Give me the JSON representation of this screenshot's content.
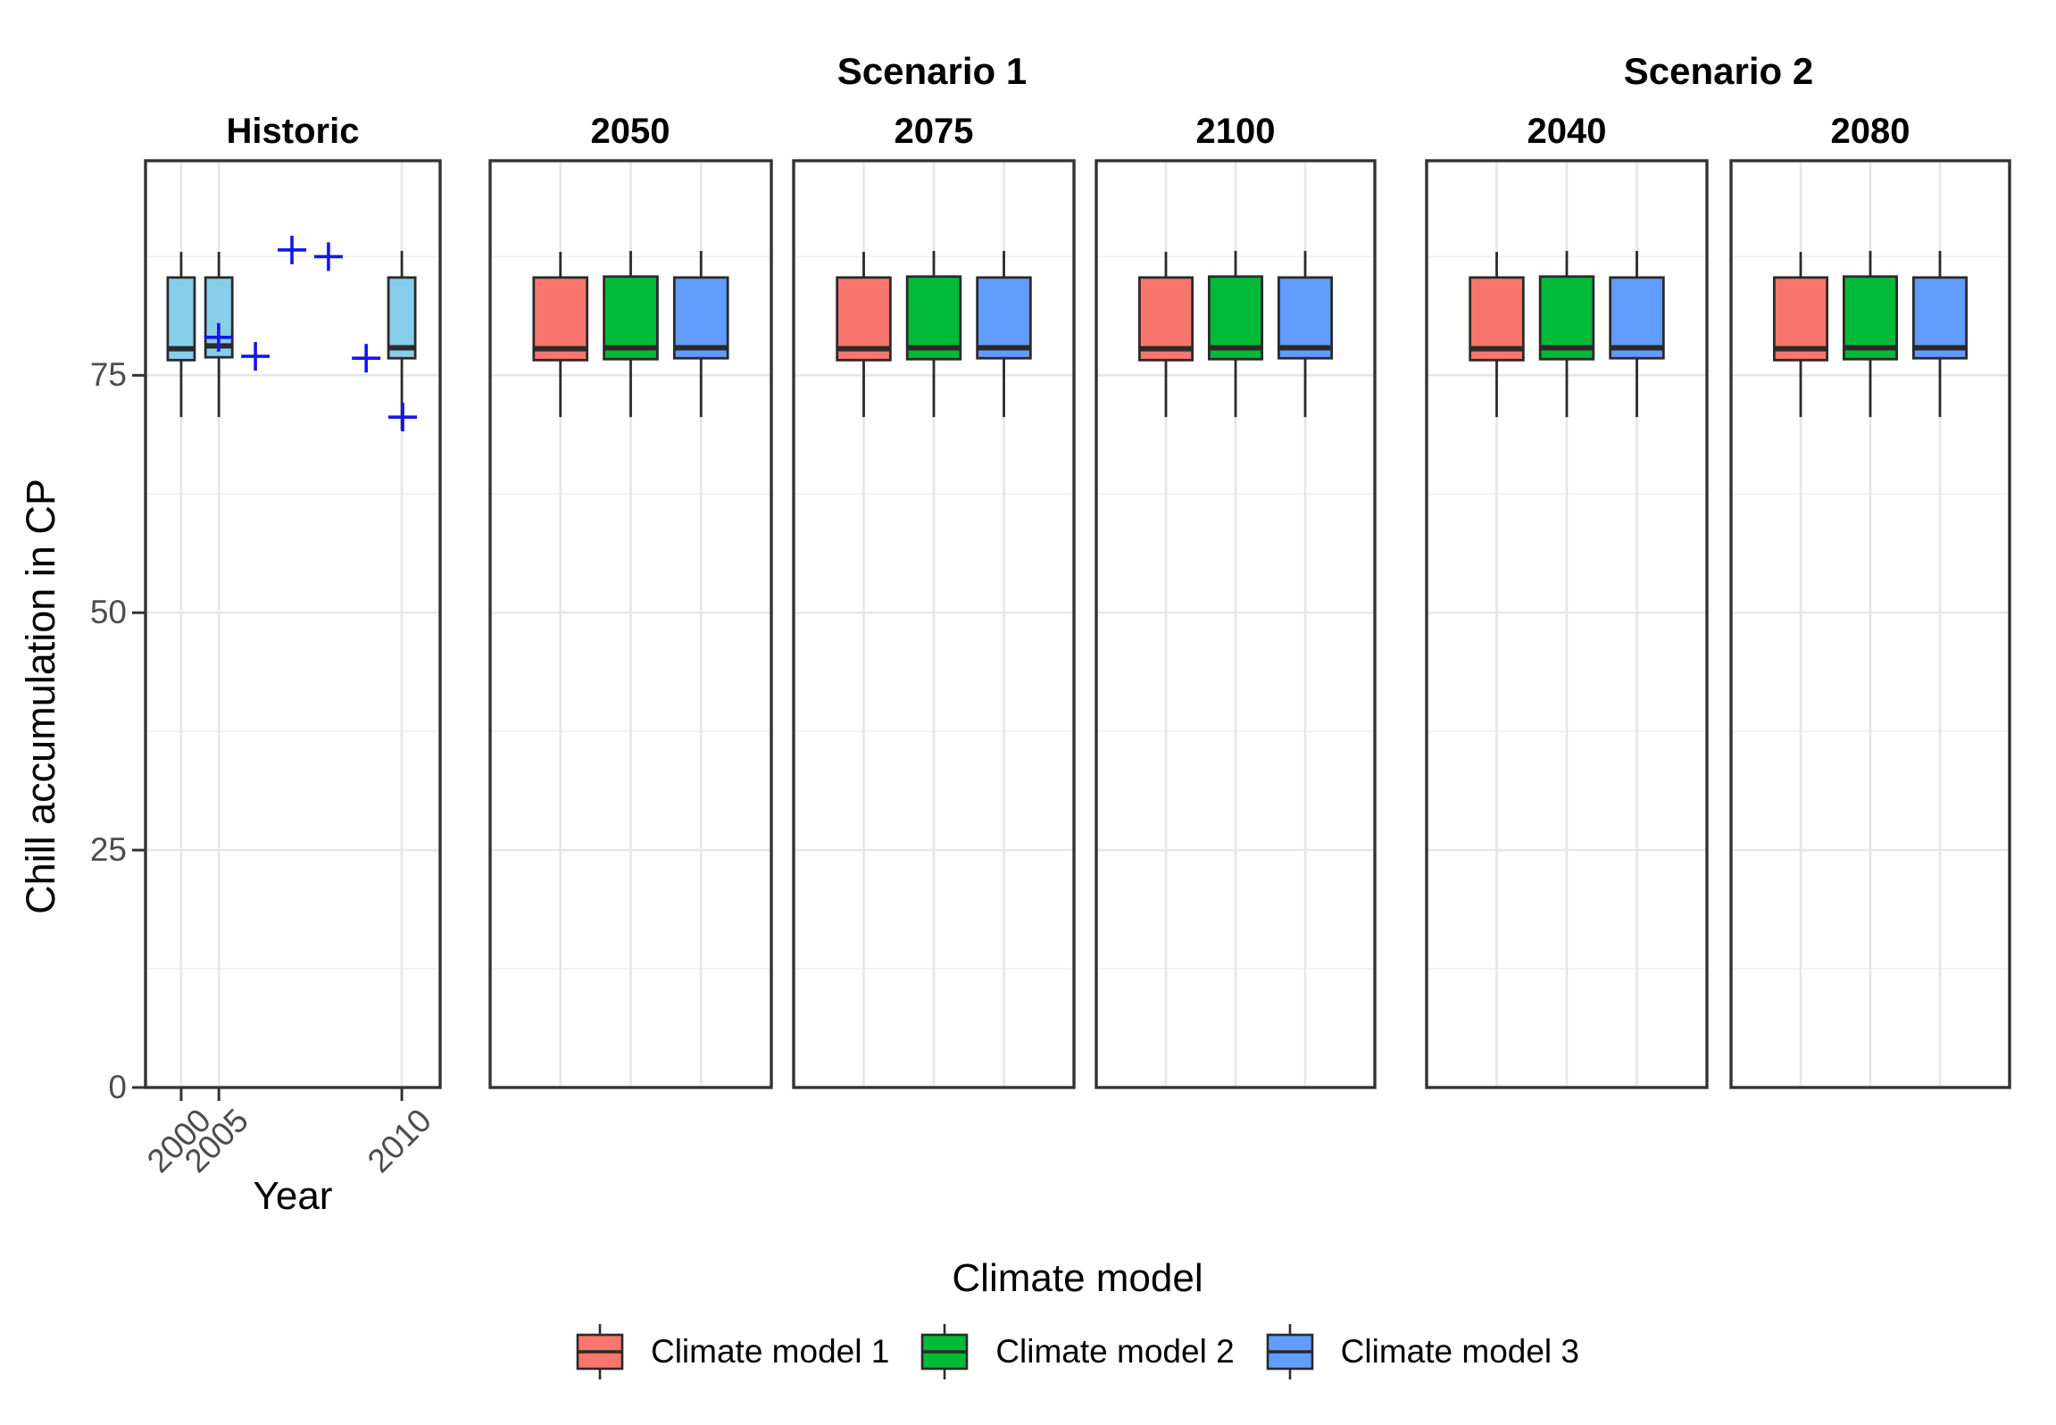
{
  "chart_data": {
    "type": "boxplot",
    "xlabel": "Year",
    "ylabel": "Chill accumulation in CP",
    "ylim": [
      0,
      97.6
    ],
    "grid": true,
    "y_major_ticks": [
      {
        "label": "0",
        "value": 0
      },
      {
        "label": "25",
        "value": 25
      },
      {
        "label": "50",
        "value": 50
      },
      {
        "label": "75",
        "value": 75
      }
    ],
    "y_minor_gridlines": [
      12.5,
      37.5,
      62.5,
      87.5
    ],
    "scenario_headers": [
      {
        "label": "Scenario 1",
        "panel_titles": [
          "2050",
          "2075",
          "2100"
        ]
      },
      {
        "label": "Scenario 2",
        "panel_titles": [
          "2040",
          "2080"
        ]
      }
    ],
    "series": [
      {
        "id": "historic",
        "label": "Historic",
        "color": "#87CEEB"
      },
      {
        "id": "model1",
        "label": "Climate model 1",
        "color": "#F8766D"
      },
      {
        "id": "model2",
        "label": "Climate model 2",
        "color": "#00BA38"
      },
      {
        "id": "model3",
        "label": "Climate model 3",
        "color": "#619CFF"
      }
    ],
    "point_style": {
      "shape": "plus",
      "color": "#1414EE",
      "size": 32
    },
    "panels": [
      {
        "title": "Historic",
        "show_x_axis": true,
        "x_ticks": [
          {
            "label": "2000",
            "pos": 0.121
          },
          {
            "label": "2005",
            "pos": 0.249
          },
          {
            "label": "2010",
            "pos": 0.87
          }
        ],
        "x_gridlines": [
          0.121,
          0.249,
          0.87
        ],
        "box_width": 0.091,
        "boxes": [
          {
            "series": "historic",
            "pos": 0.121,
            "low": 70.6,
            "q1": 76.6,
            "median": 77.8,
            "q3": 85.3,
            "high": 88.0
          },
          {
            "series": "historic",
            "pos": 0.249,
            "low": 70.6,
            "q1": 76.9,
            "median": 78.1,
            "q3": 85.3,
            "high": 88.0
          },
          {
            "series": "historic",
            "pos": 0.87,
            "low": 69.2,
            "q1": 76.8,
            "median": 77.9,
            "q3": 85.3,
            "high": 88.1
          }
        ],
        "points": [
          {
            "pos": 0.497,
            "value": 88.2
          },
          {
            "pos": 0.621,
            "value": 87.5
          },
          {
            "pos": 0.248,
            "value": 79.0
          },
          {
            "pos": 0.373,
            "value": 77.0
          },
          {
            "pos": 0.749,
            "value": 76.8
          },
          {
            "pos": 0.873,
            "value": 70.6
          }
        ]
      },
      {
        "title": "2050",
        "show_x_axis": false,
        "x_ticks": [],
        "x_gridlines": [
          0.25,
          0.5,
          0.75
        ],
        "box_width": 0.19,
        "boxes": [
          {
            "series": "model1",
            "pos": 0.25,
            "low": 70.6,
            "q1": 76.6,
            "median": 77.8,
            "q3": 85.3,
            "high": 88.0
          },
          {
            "series": "model2",
            "pos": 0.5,
            "low": 70.6,
            "q1": 76.7,
            "median": 77.9,
            "q3": 85.4,
            "high": 88.1
          },
          {
            "series": "model3",
            "pos": 0.75,
            "low": 70.6,
            "q1": 76.8,
            "median": 77.9,
            "q3": 85.3,
            "high": 88.1
          }
        ],
        "points": []
      },
      {
        "title": "2075",
        "show_x_axis": false,
        "x_ticks": [],
        "x_gridlines": [
          0.25,
          0.5,
          0.75
        ],
        "box_width": 0.19,
        "boxes": [
          {
            "series": "model1",
            "pos": 0.25,
            "low": 70.6,
            "q1": 76.6,
            "median": 77.8,
            "q3": 85.3,
            "high": 88.0
          },
          {
            "series": "model2",
            "pos": 0.5,
            "low": 70.6,
            "q1": 76.7,
            "median": 77.9,
            "q3": 85.4,
            "high": 88.1
          },
          {
            "series": "model3",
            "pos": 0.75,
            "low": 70.6,
            "q1": 76.8,
            "median": 77.9,
            "q3": 85.3,
            "high": 88.1
          }
        ],
        "points": []
      },
      {
        "title": "2100",
        "show_x_axis": false,
        "x_ticks": [],
        "x_gridlines": [
          0.25,
          0.5,
          0.75
        ],
        "box_width": 0.19,
        "boxes": [
          {
            "series": "model1",
            "pos": 0.25,
            "low": 70.6,
            "q1": 76.6,
            "median": 77.8,
            "q3": 85.3,
            "high": 88.0
          },
          {
            "series": "model2",
            "pos": 0.5,
            "low": 70.6,
            "q1": 76.7,
            "median": 77.9,
            "q3": 85.4,
            "high": 88.1
          },
          {
            "series": "model3",
            "pos": 0.75,
            "low": 70.6,
            "q1": 76.8,
            "median": 77.9,
            "q3": 85.3,
            "high": 88.1
          }
        ],
        "points": []
      },
      {
        "title": "2040",
        "show_x_axis": false,
        "x_ticks": [],
        "x_gridlines": [
          0.25,
          0.5,
          0.75
        ],
        "box_width": 0.19,
        "boxes": [
          {
            "series": "model1",
            "pos": 0.25,
            "low": 70.6,
            "q1": 76.6,
            "median": 77.8,
            "q3": 85.3,
            "high": 88.0
          },
          {
            "series": "model2",
            "pos": 0.5,
            "low": 70.6,
            "q1": 76.7,
            "median": 77.9,
            "q3": 85.4,
            "high": 88.1
          },
          {
            "series": "model3",
            "pos": 0.75,
            "low": 70.6,
            "q1": 76.8,
            "median": 77.9,
            "q3": 85.3,
            "high": 88.1
          }
        ],
        "points": []
      },
      {
        "title": "2080",
        "show_x_axis": false,
        "x_ticks": [],
        "x_gridlines": [
          0.25,
          0.5,
          0.75
        ],
        "box_width": 0.19,
        "boxes": [
          {
            "series": "model1",
            "pos": 0.25,
            "low": 70.6,
            "q1": 76.6,
            "median": 77.8,
            "q3": 85.3,
            "high": 88.0
          },
          {
            "series": "model2",
            "pos": 0.5,
            "low": 70.6,
            "q1": 76.7,
            "median": 77.9,
            "q3": 85.4,
            "high": 88.1
          },
          {
            "series": "model3",
            "pos": 0.75,
            "low": 70.6,
            "q1": 76.8,
            "median": 77.9,
            "q3": 85.3,
            "high": 88.1
          }
        ],
        "points": []
      }
    ]
  },
  "legend": {
    "title": "Climate model",
    "items": [
      {
        "label": "Climate model 1",
        "color": "#F8766D"
      },
      {
        "label": "Climate model 2",
        "color": "#00BA38"
      },
      {
        "label": "Climate model 3",
        "color": "#619CFF"
      }
    ]
  }
}
